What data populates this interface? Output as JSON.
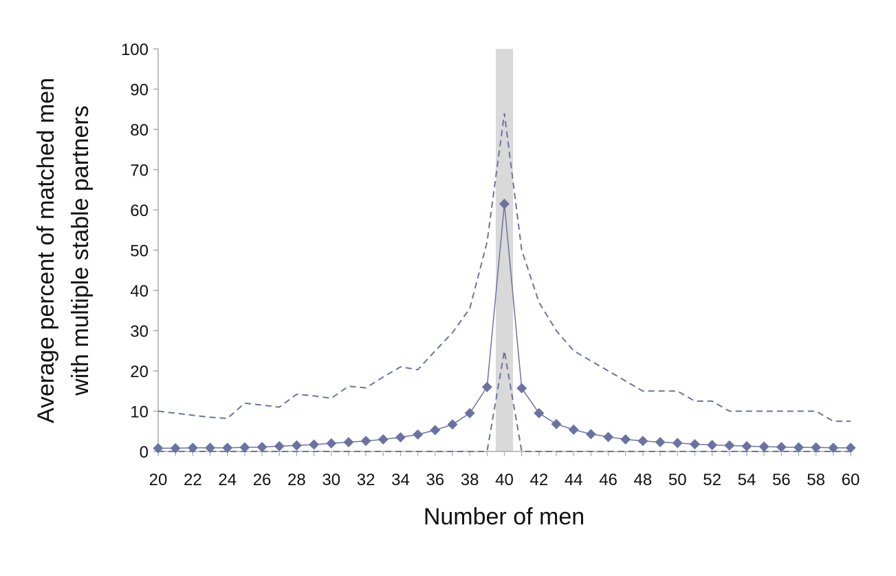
{
  "chart_data": {
    "type": "line",
    "title": "",
    "xlabel": "Number of men",
    "ylabel_lines": [
      "Average  percent of matched men",
      "with multiple stable partners"
    ],
    "xlim": [
      20,
      60
    ],
    "ylim": [
      0,
      100
    ],
    "x_ticks": [
      20,
      22,
      24,
      26,
      28,
      30,
      32,
      34,
      36,
      38,
      40,
      42,
      44,
      46,
      48,
      50,
      52,
      54,
      56,
      58,
      60
    ],
    "y_ticks": [
      0,
      10,
      20,
      30,
      40,
      50,
      60,
      70,
      80,
      90,
      100
    ],
    "grid": false,
    "legend": "none",
    "highlight_band": {
      "x_from": 39.5,
      "x_to": 40.5,
      "color": "#d9d9d9"
    },
    "series_color": "#6b72a3",
    "series": [
      {
        "style": "solid-diamond",
        "x": [
          20,
          21,
          22,
          23,
          24,
          25,
          26,
          27,
          28,
          29,
          30,
          31,
          32,
          33,
          34,
          35,
          36,
          37,
          38,
          39,
          40,
          41,
          42,
          43,
          44,
          45,
          46,
          47,
          48,
          49,
          50,
          51,
          52,
          53,
          54,
          55,
          56,
          57,
          58,
          59,
          60
        ],
        "values": [
          0.8,
          0.8,
          0.9,
          0.9,
          0.9,
          1.0,
          1.1,
          1.3,
          1.5,
          1.7,
          2.0,
          2.3,
          2.6,
          3.0,
          3.5,
          4.2,
          5.3,
          6.7,
          9.5,
          16.0,
          61.5,
          15.7,
          9.5,
          6.8,
          5.4,
          4.3,
          3.6,
          3.0,
          2.6,
          2.3,
          2.1,
          1.8,
          1.6,
          1.5,
          1.3,
          1.2,
          1.1,
          1.0,
          1.0,
          0.9,
          0.9
        ]
      },
      {
        "style": "dashed",
        "x": [
          20,
          21,
          22,
          23,
          24,
          25,
          26,
          27,
          28,
          29,
          30,
          31,
          32,
          33,
          34,
          35,
          36,
          37,
          38,
          39,
          40,
          41,
          42,
          43,
          44,
          45,
          46,
          47,
          48,
          49,
          50,
          51,
          52,
          53,
          54,
          55,
          56,
          57,
          58,
          59,
          60
        ],
        "values": [
          10,
          9.5,
          9,
          8.5,
          8.2,
          12,
          11.5,
          11,
          14.2,
          13.8,
          13.2,
          16.2,
          15.8,
          18.5,
          21,
          20.3,
          25,
          29.5,
          35.5,
          52,
          84,
          50,
          37,
          30,
          25,
          22.5,
          20,
          17.5,
          15,
          15,
          15,
          12.5,
          12.5,
          10,
          10,
          10,
          10,
          10,
          10,
          7.5,
          7.5
        ]
      },
      {
        "style": "dashed",
        "x": [
          20,
          21,
          22,
          23,
          24,
          25,
          26,
          27,
          28,
          29,
          30,
          31,
          32,
          33,
          34,
          35,
          36,
          37,
          38,
          39,
          40,
          41,
          42,
          43,
          44,
          45,
          46,
          47,
          48,
          49,
          50,
          51,
          52,
          53,
          54,
          55,
          56,
          57,
          58,
          59,
          60
        ],
        "values": [
          0,
          0,
          0,
          0,
          0,
          0,
          0,
          0,
          0,
          0,
          0,
          0,
          0,
          0,
          0,
          0,
          0,
          0,
          0,
          0,
          25,
          0,
          0,
          0,
          0,
          0,
          0,
          0,
          0,
          0,
          0,
          0,
          0,
          0,
          0,
          0,
          0,
          0,
          0,
          0,
          0
        ]
      }
    ]
  }
}
